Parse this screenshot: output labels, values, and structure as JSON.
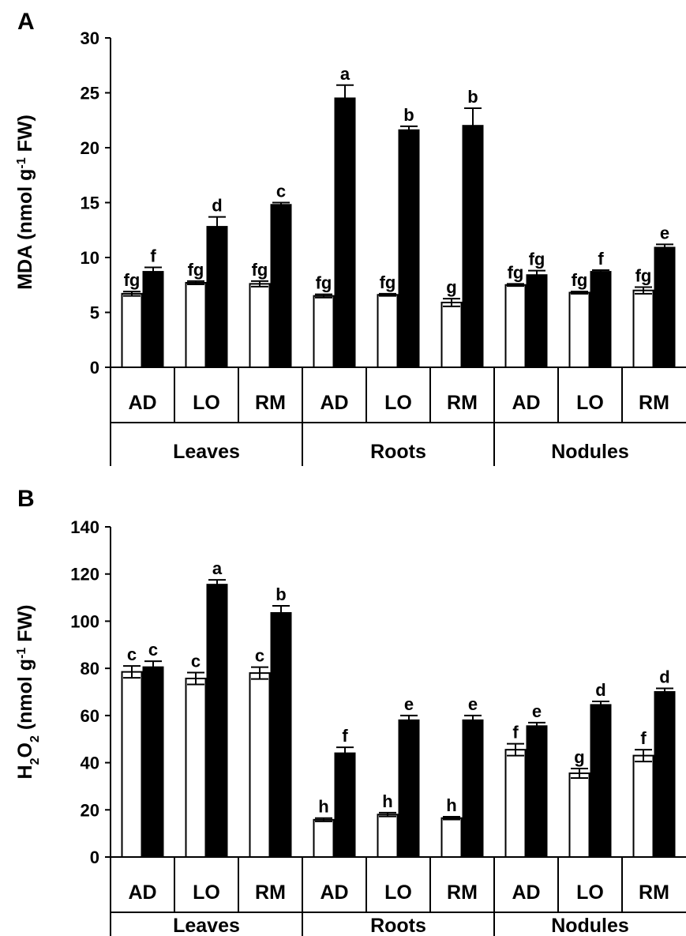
{
  "chart_data": [
    {
      "type": "bar",
      "panel": "A",
      "ylabel_parts": [
        "MDA (nmol g",
        "-1",
        " FW)"
      ],
      "ylim": [
        0,
        30
      ],
      "yticks": [
        0,
        5,
        10,
        15,
        20,
        25,
        30
      ],
      "groups": [
        "Leaves",
        "Roots",
        "Nodules"
      ],
      "categories": [
        "AD",
        "LO",
        "RM",
        "AD",
        "LO",
        "RM",
        "AD",
        "LO",
        "RM"
      ],
      "series": [
        {
          "color": "#ffffff",
          "values": [
            6.7,
            7.7,
            7.6,
            6.5,
            6.6,
            5.9,
            7.5,
            6.8,
            7.0
          ],
          "errors": [
            0.2,
            0.15,
            0.25,
            0.15,
            0.1,
            0.35,
            0.1,
            0.1,
            0.3
          ],
          "letters": [
            "fg",
            "fg",
            "fg",
            "fg",
            "fg",
            "g",
            "fg",
            "fg",
            "fg"
          ]
        },
        {
          "color": "#000000",
          "values": [
            8.7,
            12.8,
            14.8,
            24.5,
            21.6,
            22.0,
            8.4,
            8.7,
            10.9
          ],
          "errors": [
            0.4,
            0.9,
            0.2,
            1.2,
            0.35,
            1.6,
            0.4,
            0.15,
            0.3
          ],
          "letters": [
            "f",
            "d",
            "c",
            "a",
            "b",
            "b",
            "fg",
            "f",
            "e"
          ]
        }
      ]
    },
    {
      "type": "bar",
      "panel": "B",
      "ylabel_parts": [
        "H",
        "2",
        "O",
        "2",
        " (nmol g",
        "-1",
        " FW)"
      ],
      "ylim": [
        0,
        140
      ],
      "yticks": [
        0,
        20,
        40,
        60,
        80,
        100,
        120,
        140
      ],
      "groups": [
        "Leaves",
        "Roots",
        "Nodules"
      ],
      "categories": [
        "AD",
        "LO",
        "RM",
        "AD",
        "LO",
        "RM",
        "AD",
        "LO",
        "RM"
      ],
      "series": [
        {
          "color": "#ffffff",
          "values": [
            78.5,
            75.7,
            78.0,
            15.8,
            18.0,
            16.5,
            45.5,
            35.5,
            43.0
          ],
          "errors": [
            2.5,
            2.5,
            2.5,
            0.7,
            0.8,
            0.6,
            2.5,
            2.0,
            2.5
          ],
          "letters": [
            "c",
            "c",
            "c",
            "h",
            "h",
            "h",
            "f",
            "g",
            "f"
          ]
        },
        {
          "color": "#000000",
          "values": [
            80.5,
            115.5,
            103.5,
            44.0,
            58.0,
            58.0,
            55.5,
            64.5,
            70.0
          ],
          "errors": [
            2.5,
            2.0,
            3.0,
            2.5,
            2.0,
            2.0,
            1.5,
            1.5,
            1.5
          ],
          "letters": [
            "c",
            "a",
            "b",
            "f",
            "e",
            "e",
            "e",
            "d",
            "d"
          ]
        }
      ]
    }
  ]
}
